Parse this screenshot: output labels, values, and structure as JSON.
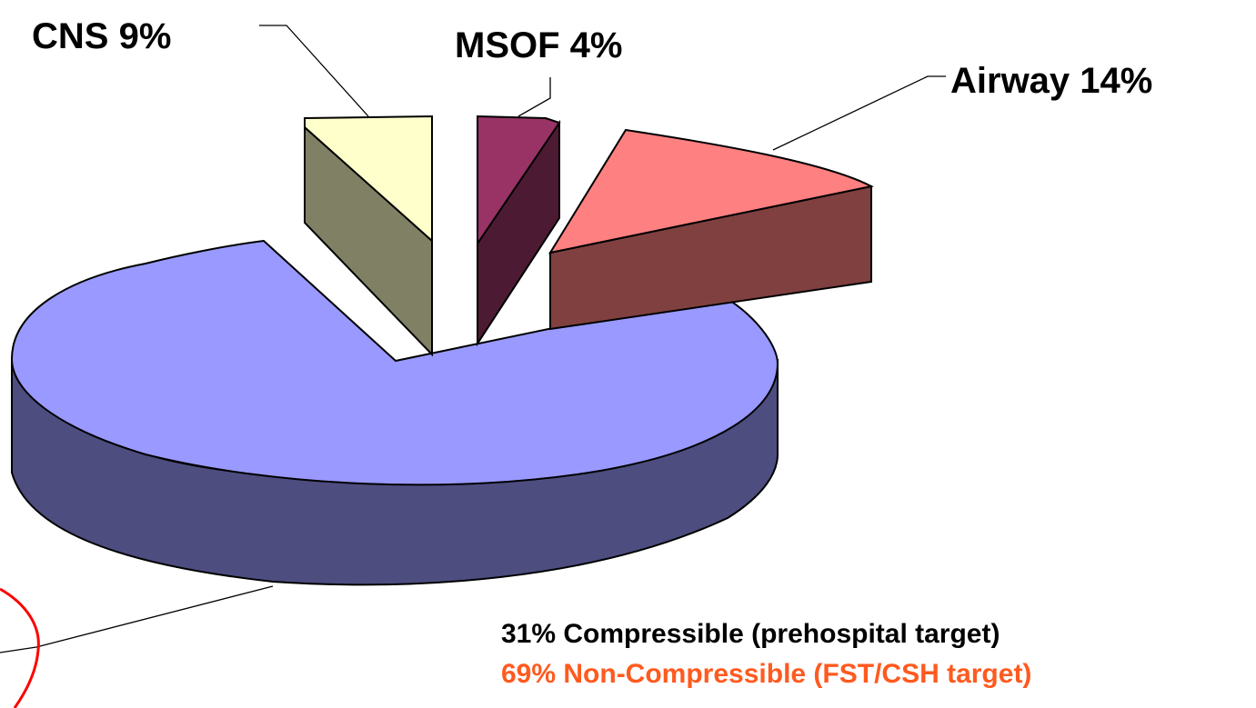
{
  "chart_data": {
    "type": "pie",
    "style": "3d-exploded",
    "labels": [
      {
        "id": "cns",
        "text": "CNS 9%",
        "color": "#ffffcc",
        "side_color": "#808064"
      },
      {
        "id": "msof",
        "text": "MSOF 4%",
        "color": "#993366",
        "side_color": "#4d1a33"
      },
      {
        "id": "airway",
        "text": "Airway 14%",
        "color": "#ff8080",
        "side_color": "#804040"
      }
    ],
    "main_slice": {
      "color": "#9999ff",
      "side_color": "#4d4d80"
    },
    "annotation_color": "#ff0000",
    "notes": [
      {
        "text": "31% Compressible (prehospital target)",
        "color": "#000000"
      },
      {
        "text": "69% Non-Compressible (FST/CSH target)",
        "color": "#ff5a1f"
      }
    ]
  }
}
